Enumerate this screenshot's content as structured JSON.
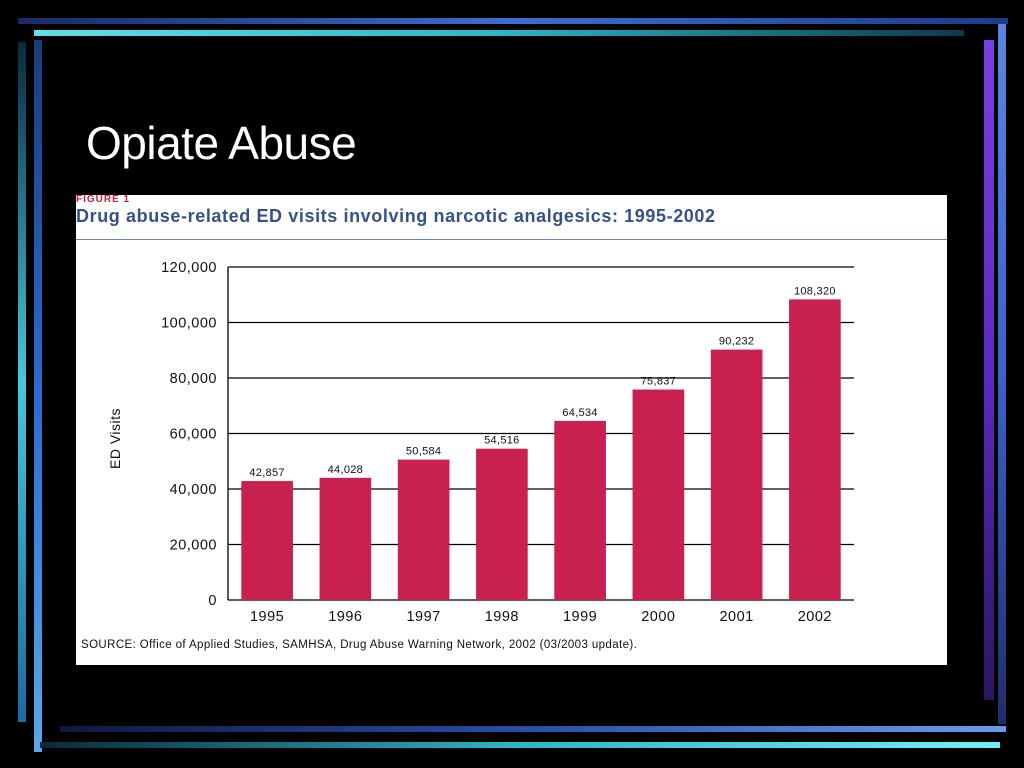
{
  "slide": {
    "title": "Opiate Abuse"
  },
  "colors": {
    "background": "#000000",
    "bar": "#c8204f",
    "figure_title": "#36518a",
    "figure_label": "#c8203d"
  },
  "figure": {
    "label": "FIGURE 1",
    "title": "Drug abuse-related ED visits involving narcotic analgesics:  1995-2002",
    "source": "SOURCE: Office of Applied Studies, SAMHSA, Drug Abuse Warning Network, 2002 (03/2003 update)."
  },
  "chart_data": {
    "type": "bar",
    "title": "Drug abuse-related ED visits involving narcotic analgesics:  1995-2002",
    "xlabel": "",
    "ylabel": "ED Visits",
    "categories": [
      "1995",
      "1996",
      "1997",
      "1998",
      "1999",
      "2000",
      "2001",
      "2002"
    ],
    "values": [
      42857,
      44028,
      50584,
      54516,
      64534,
      75837,
      90232,
      108320
    ],
    "value_labels": [
      "42,857",
      "44,028",
      "50,584",
      "54,516",
      "64,534",
      "75,837",
      "90,232",
      "108,320"
    ],
    "ylim": [
      0,
      120000
    ],
    "yticks": [
      0,
      20000,
      40000,
      60000,
      80000,
      100000,
      120000
    ],
    "ytick_labels": [
      "0",
      "20,000",
      "40,000",
      "60,000",
      "80,000",
      "100,000",
      "120,000"
    ],
    "grid": true,
    "legend": "none"
  }
}
